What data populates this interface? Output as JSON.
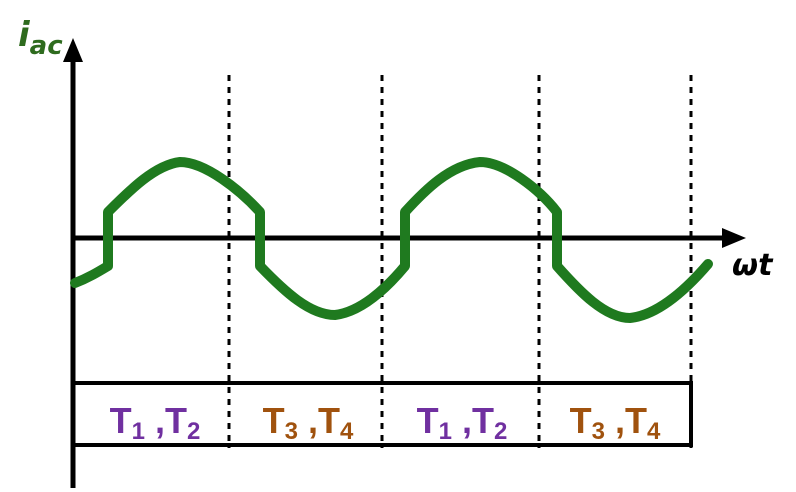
{
  "diagram": {
    "y_axis_label": {
      "main": "i",
      "sub": "ac"
    },
    "x_axis_label": "ωt",
    "colors": {
      "waveform": "#1f7a1f",
      "axis": "#000000",
      "y_label": "#2e6b1e",
      "pair_a": "#7030a0",
      "pair_b": "#a0520e"
    },
    "segments": [
      {
        "switch1": {
          "main": "T",
          "sub": "1"
        },
        "sep": " ,",
        "switch2": {
          "main": "T",
          "sub": "2"
        },
        "pair": "a"
      },
      {
        "switch1": {
          "main": "T",
          "sub": "3"
        },
        "sep": " ,",
        "switch2": {
          "main": "T",
          "sub": "4"
        },
        "pair": "b"
      },
      {
        "switch1": {
          "main": "T",
          "sub": "1"
        },
        "sep": " ,",
        "switch2": {
          "main": "T",
          "sub": "2"
        },
        "pair": "a"
      },
      {
        "switch1": {
          "main": "T",
          "sub": "3"
        },
        "sep": " ,",
        "switch2": {
          "main": "T",
          "sub": "4"
        },
        "pair": "b"
      }
    ]
  }
}
